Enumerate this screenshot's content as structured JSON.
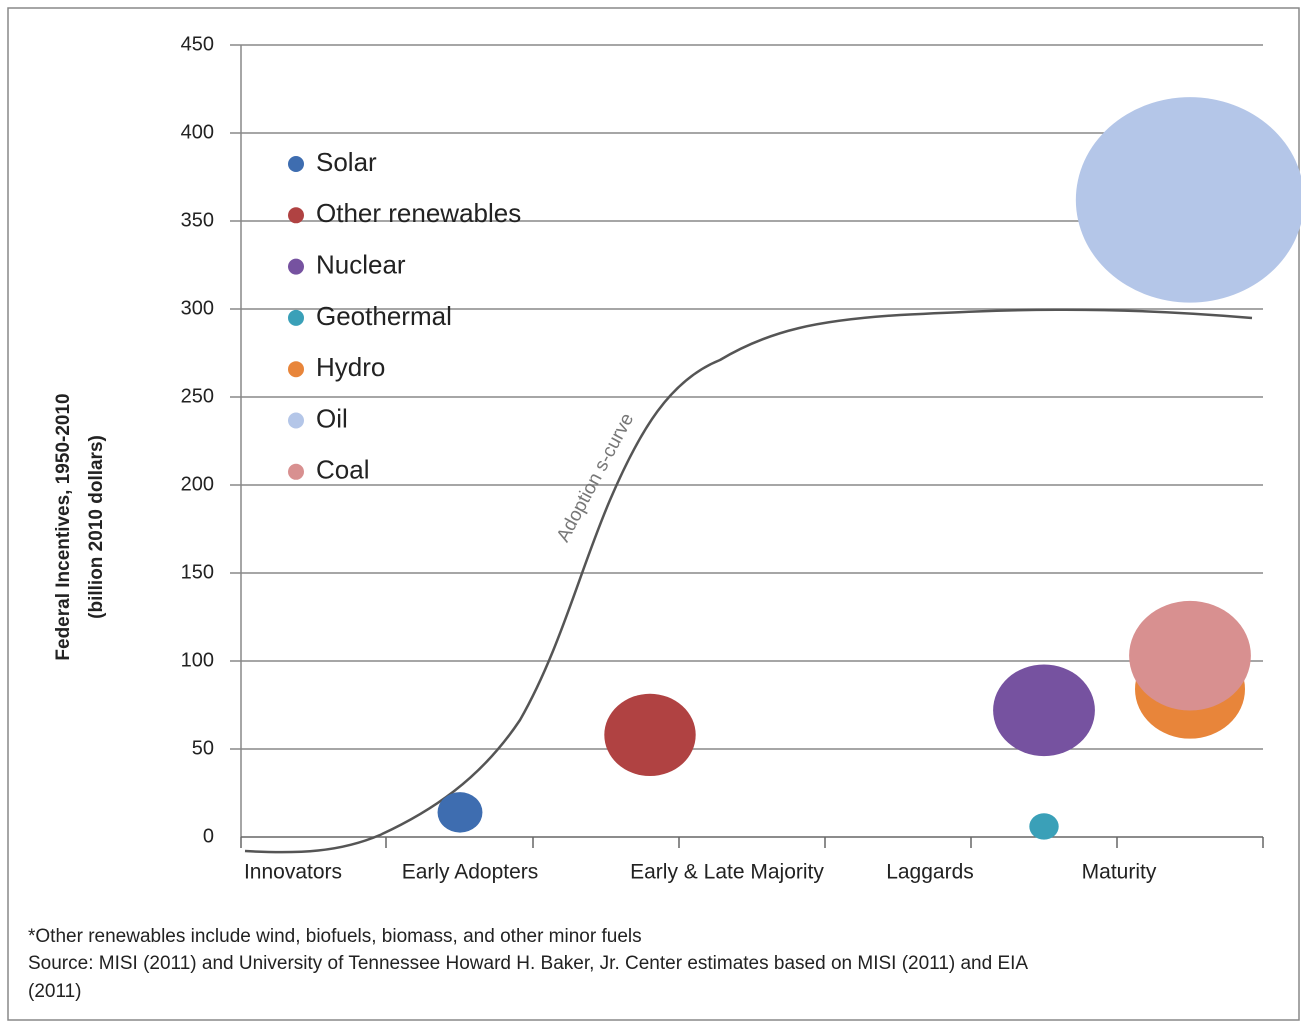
{
  "chart_data": {
    "type": "bubble",
    "y_label": [
      "Federal Incentives, 1950-2010",
      "(billion 2010 dollars)"
    ],
    "categories": [
      "Innovators",
      "Early Adopters",
      "Early & Late Majority",
      "Laggards",
      "Maturity"
    ],
    "ylim": [
      0,
      450
    ],
    "yticks": [
      0,
      50,
      100,
      150,
      200,
      250,
      300,
      350,
      400,
      450
    ],
    "grid": true,
    "legend": "upper left",
    "annotation": "Adoption s-curve",
    "series": [
      {
        "name": "Solar",
        "color": "#3e6db0",
        "x": "Early Adopters",
        "values": [
          14
        ]
      },
      {
        "name": "Other renewables",
        "color": "#b04242",
        "x": "Early & Late Majority",
        "values": [
          58
        ]
      },
      {
        "name": "Nuclear",
        "color": "#7652a0",
        "x": "Laggards",
        "values": [
          72
        ]
      },
      {
        "name": "Geothermal",
        "color": "#3aa0b8",
        "x": "Laggards",
        "values": [
          6
        ]
      },
      {
        "name": "Hydro",
        "color": "#e8853a",
        "x": "Maturity",
        "values": [
          84
        ]
      },
      {
        "name": "Oil",
        "color": "#b4c6e8",
        "x": "Maturity",
        "values": [
          362
        ]
      },
      {
        "name": "Coal",
        "color": "#d89090",
        "x": "Maturity",
        "values": [
          103
        ]
      }
    ],
    "notes": [
      "*Other renewables include wind, biofuels, biomass, and other minor fuels",
      "Source: MISI (2011) and University of Tennessee Howard H. Baker, Jr. Center estimates based on MISI (2011) and EIA",
      "(2011)"
    ]
  }
}
